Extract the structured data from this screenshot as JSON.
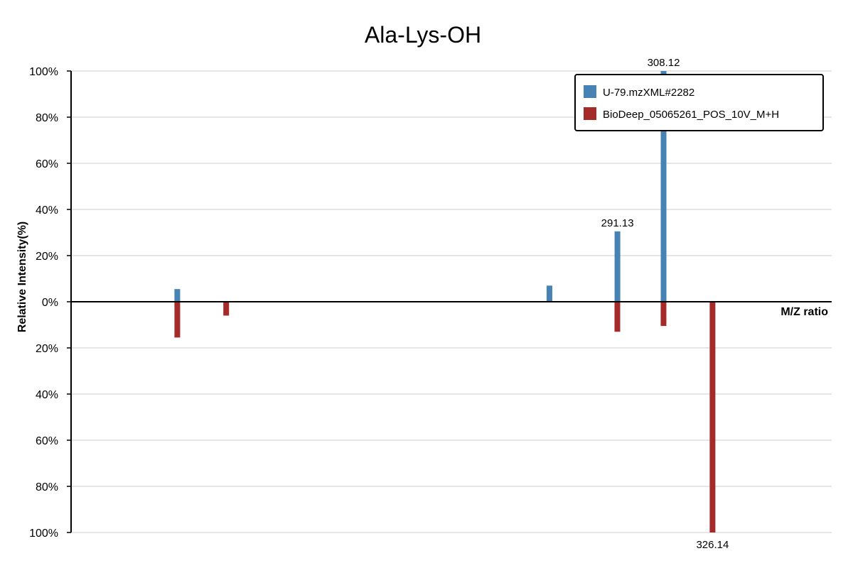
{
  "chart_data": {
    "type": "bar",
    "subtype": "mirror-spectrum",
    "title": "Ala-Lys-OH",
    "xlabel": "M/Z ratio",
    "ylabel": "Relative Intensity(%)",
    "ylim": [
      -100,
      100
    ],
    "y_ticks": [
      {
        "value": 100,
        "label": "100%"
      },
      {
        "value": 80,
        "label": "80%"
      },
      {
        "value": 60,
        "label": "60%"
      },
      {
        "value": 40,
        "label": "40%"
      },
      {
        "value": 20,
        "label": "20%"
      },
      {
        "value": 0,
        "label": "0%"
      },
      {
        "value": -20,
        "label": "20%"
      },
      {
        "value": -40,
        "label": "40%"
      },
      {
        "value": -60,
        "label": "60%"
      },
      {
        "value": -80,
        "label": "80%"
      },
      {
        "value": -100,
        "label": "100%"
      }
    ],
    "grid": true,
    "legend_position": "top-right",
    "series": [
      {
        "name": "U-79.mzXML#2282",
        "color": "#4682b4",
        "direction": "up",
        "peaks": [
          {
            "mz": 129.1,
            "intensity": 5.5,
            "label": ""
          },
          {
            "mz": 266.1,
            "intensity": 7,
            "label": ""
          },
          {
            "mz": 291.13,
            "intensity": 30.5,
            "label": "291.13"
          },
          {
            "mz": 308.12,
            "intensity": 100,
            "label": "308.12"
          }
        ]
      },
      {
        "name": "BioDeep_05065261_POS_10V_M+H",
        "color": "#a52a2a",
        "direction": "down",
        "peaks": [
          {
            "mz": 129.1,
            "intensity": 15.5,
            "label": ""
          },
          {
            "mz": 147.1,
            "intensity": 6,
            "label": ""
          },
          {
            "mz": 291.1,
            "intensity": 13,
            "label": ""
          },
          {
            "mz": 308.1,
            "intensity": 10.5,
            "label": ""
          },
          {
            "mz": 326.14,
            "intensity": 100,
            "label": "326.14"
          }
        ]
      }
    ]
  }
}
